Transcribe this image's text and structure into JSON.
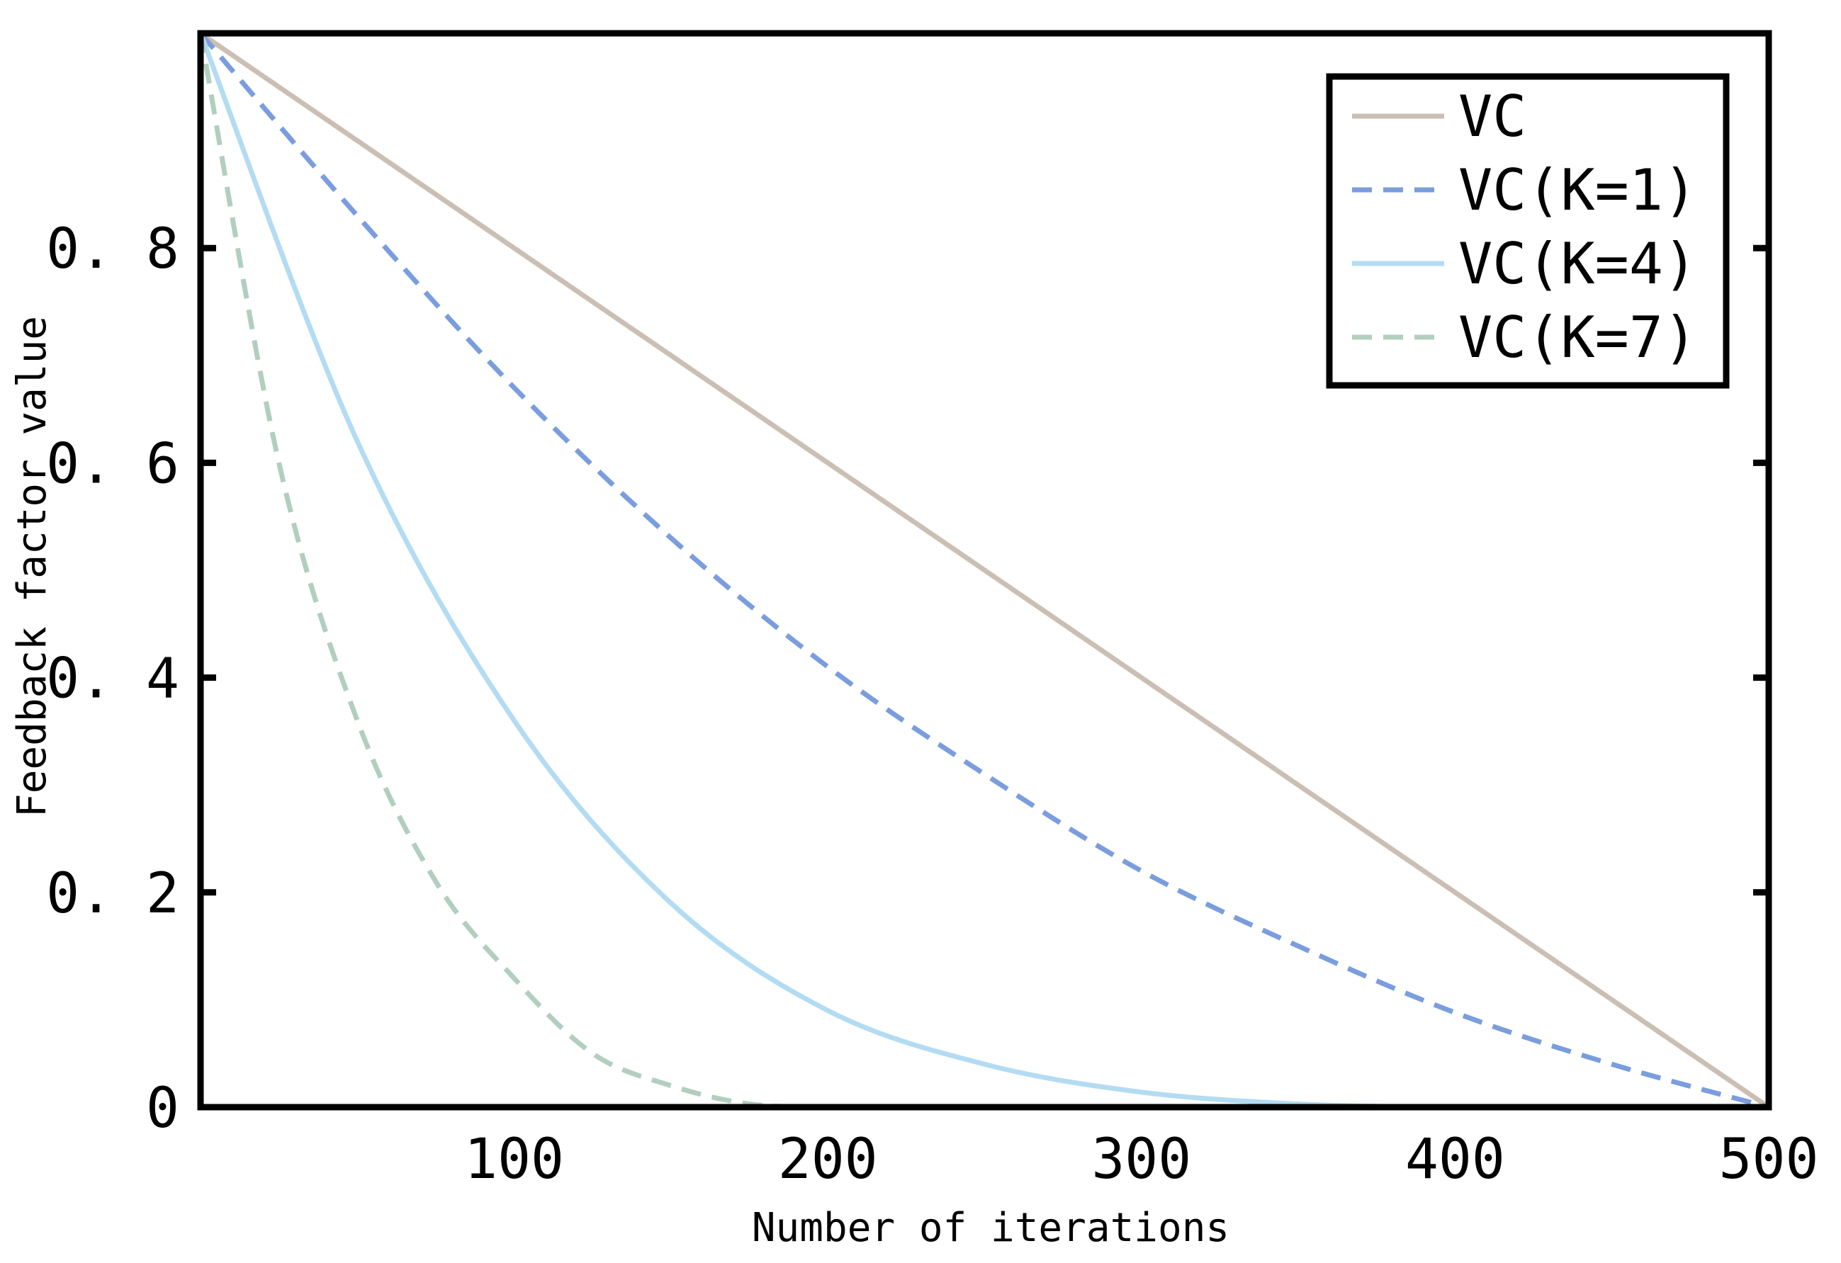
{
  "chart_data": {
    "type": "line",
    "title": "",
    "xlabel": "Number of iterations",
    "ylabel": "Feedback factor value",
    "xlim": [
      0,
      500
    ],
    "ylim": [
      0,
      1
    ],
    "xticks": [
      100,
      200,
      300,
      400,
      500
    ],
    "xtick_labels": [
      "100",
      "200",
      "300",
      "400",
      "500"
    ],
    "yticks": [
      0,
      0.2,
      0.4,
      0.6,
      0.8
    ],
    "ytick_labels": [
      "0",
      "0. 2",
      "0. 4",
      "0. 6",
      "0. 8"
    ],
    "grid": false,
    "legend_position": "top-right",
    "series": [
      {
        "name": "VC",
        "K": 0,
        "style": "solid",
        "color": "#cbbfb3",
        "x": [
          0,
          50,
          100,
          150,
          200,
          250,
          300,
          350,
          400,
          450,
          500
        ],
        "values": [
          1,
          0.9,
          0.8,
          0.7,
          0.6,
          0.5,
          0.4,
          0.3,
          0.2,
          0.1,
          0
        ]
      },
      {
        "name": "VC(K=1)",
        "K": 1,
        "style": "dashed",
        "color": "#7a9ddd",
        "x": [
          0,
          50,
          100,
          150,
          200,
          250,
          300,
          350,
          400,
          450,
          500
        ],
        "values": [
          1,
          0.83,
          0.67,
          0.53,
          0.41,
          0.31,
          0.22,
          0.15,
          0.088,
          0.04,
          0
        ]
      },
      {
        "name": "VC(K=4)",
        "K": 4,
        "style": "solid",
        "color": "#b3dcf2",
        "x": [
          0,
          50,
          100,
          150,
          200,
          250,
          300,
          350,
          400,
          450,
          500
        ],
        "values": [
          1,
          0.62,
          0.36,
          0.19,
          0.09,
          0.04,
          0.014,
          0.003,
          0,
          0,
          0
        ]
      },
      {
        "name": "VC(K=7)",
        "K": 7,
        "style": "dashed",
        "color": "#b2cebf",
        "x": [
          0,
          25,
          50,
          75,
          100,
          125,
          150,
          175,
          200,
          250,
          300,
          350,
          400,
          450,
          500
        ],
        "values": [
          1,
          0.6,
          0.36,
          0.21,
          0.12,
          0.05,
          0.02,
          0.003,
          0,
          0,
          0,
          0,
          0,
          0,
          0
        ]
      }
    ]
  }
}
